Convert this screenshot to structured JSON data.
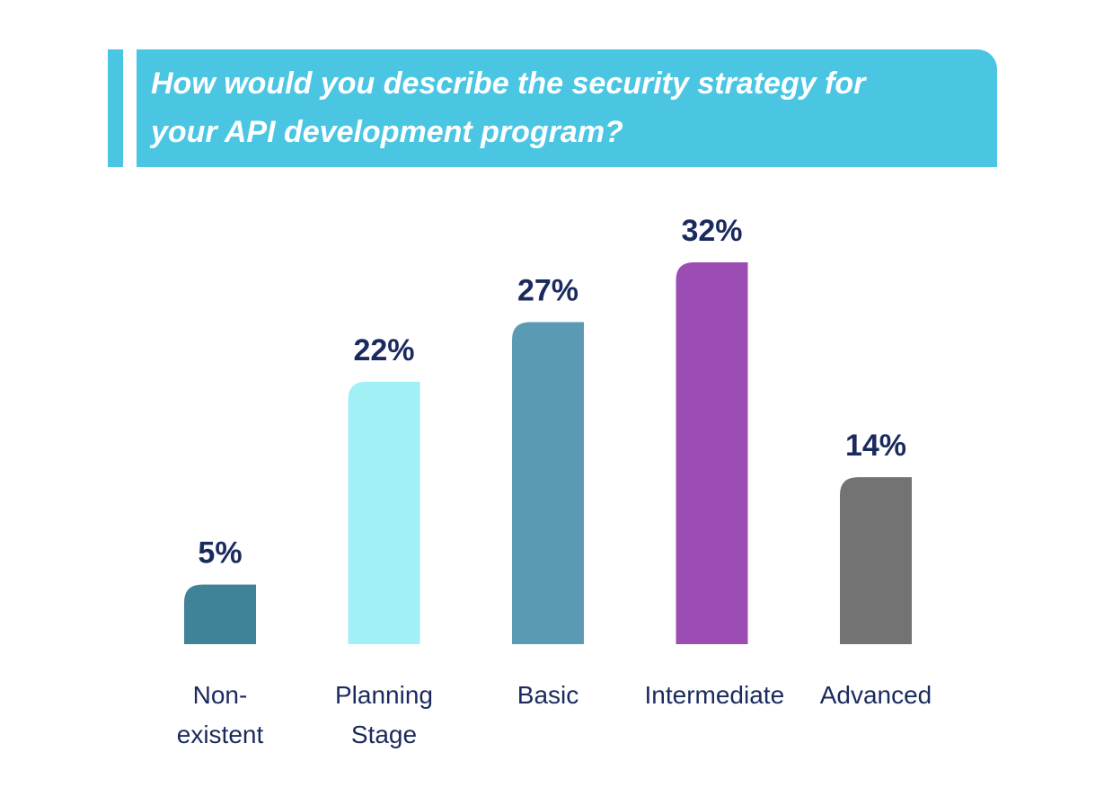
{
  "chart_data": {
    "type": "bar",
    "title": "How would you describe the security strategy for your API development program?",
    "categories": [
      "Non-existent",
      "Planning Stage",
      "Basic",
      "Intermediate",
      "Advanced"
    ],
    "values": [
      5,
      22,
      27,
      32,
      14
    ],
    "value_labels": [
      "5%",
      "22%",
      "27%",
      "32%",
      "14%"
    ],
    "colors": [
      "#3f8398",
      "#a0f0f5",
      "#5a9ab5",
      "#9b4db3",
      "#737373"
    ]
  }
}
